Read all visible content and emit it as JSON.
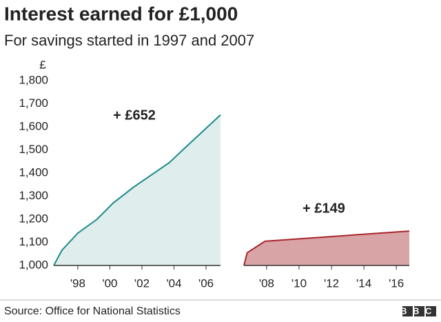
{
  "header": {
    "title": "Interest earned for £1,000",
    "subtitle": "For savings started in 1997 and 2007"
  },
  "footer": {
    "source": "Source: Office for National Statistics",
    "logo": "BBC"
  },
  "chart_data": [
    {
      "type": "area",
      "y_label": "£",
      "annotation": "+ £652",
      "color": "#1a8a8a",
      "fill_color": "#e0eded",
      "x": [
        1996.5,
        1997.0,
        1998.0,
        1999.2,
        2000.2,
        2001.5,
        2003.7,
        2004.7,
        2006.9
      ],
      "values": [
        1000,
        1065,
        1140,
        1200,
        1270,
        1340,
        1445,
        1510,
        1652
      ],
      "xlim": [
        1996.5,
        2006.9
      ],
      "xticks": [
        {
          "value": 1998,
          "label": "'98"
        },
        {
          "value": 2000,
          "label": "'00"
        },
        {
          "value": 2002,
          "label": "'02"
        },
        {
          "value": 2004,
          "label": "'04"
        },
        {
          "value": 2006,
          "label": "'06"
        }
      ],
      "ylim": [
        1000,
        1800
      ],
      "yticks": [
        {
          "value": 1000,
          "label": "1,000"
        },
        {
          "value": 1100,
          "label": "1,100"
        },
        {
          "value": 1200,
          "label": "1,200"
        },
        {
          "value": 1300,
          "label": "1,300"
        },
        {
          "value": 1400,
          "label": "1,400"
        },
        {
          "value": 1500,
          "label": "1,500"
        },
        {
          "value": 1600,
          "label": "1,600"
        },
        {
          "value": 1700,
          "label": "1,700"
        },
        {
          "value": 1800,
          "label": "1,800"
        }
      ]
    },
    {
      "type": "area",
      "annotation": "+ £149",
      "color": "#a5262a",
      "fill_color": "#d9a4a5",
      "x": [
        2006.6,
        2006.8,
        2007.9,
        2016.8
      ],
      "values": [
        1000,
        1055,
        1105,
        1149
      ],
      "xlim": [
        2006.6,
        2016.8
      ],
      "xticks": [
        {
          "value": 2008,
          "label": "'08"
        },
        {
          "value": 2010,
          "label": "'10"
        },
        {
          "value": 2012,
          "label": "'12"
        },
        {
          "value": 2014,
          "label": "'14"
        },
        {
          "value": 2016,
          "label": "'16"
        }
      ],
      "ylim": [
        1000,
        1800
      ]
    }
  ]
}
